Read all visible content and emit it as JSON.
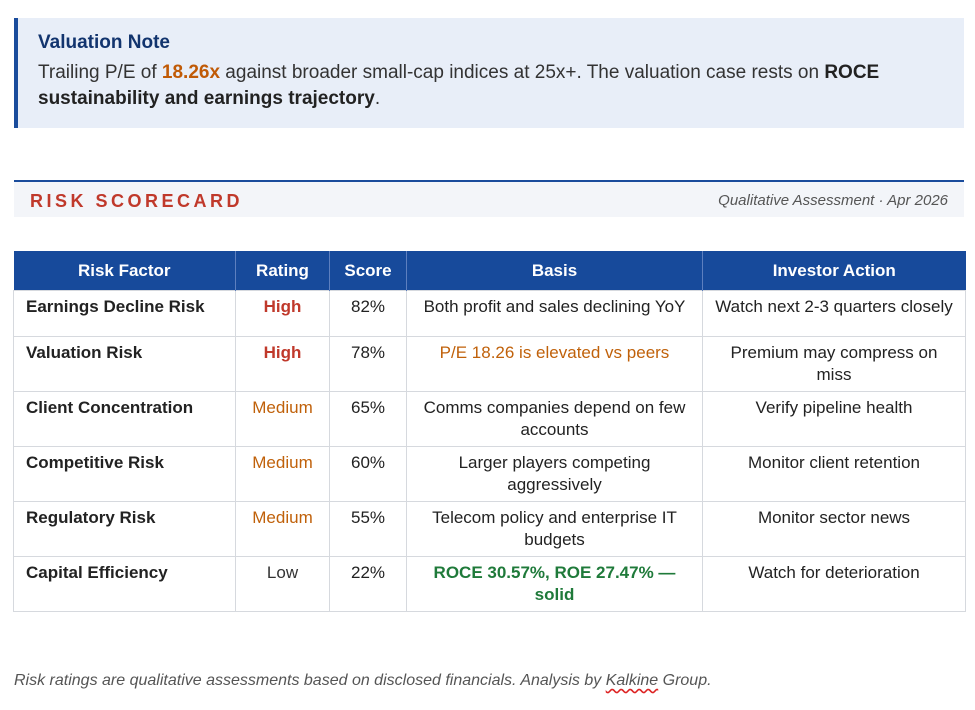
{
  "note": {
    "title": "Valuation Note",
    "text_part1": "Trailing P/E of ",
    "pe_value": "18.26x",
    "text_part2": " against broader small-cap indices at 25x+. The valuation case rests on ",
    "emphasis": "ROCE sustainability and earnings trajectory",
    "text_end": "."
  },
  "scorecard": {
    "title": "RISK SCORECARD",
    "subtitle": "Qualitative Assessment · Apr 2026"
  },
  "table": {
    "headers": [
      "Risk Factor",
      "Rating",
      "Score",
      "Basis",
      "Investor Action"
    ],
    "rows": [
      {
        "factor": "Earnings Decline Risk",
        "rating": "High",
        "score": "82%",
        "basis": "Both profit and sales declining YoY",
        "action": "Watch next 2-3 quarters closely"
      },
      {
        "factor": "Valuation Risk",
        "rating": "High",
        "score": "78%",
        "basis": "P/E 18.26 is elevated vs peers",
        "action": "Premium may compress on miss"
      },
      {
        "factor": "Client Concentration",
        "rating": "Medium",
        "score": "65%",
        "basis": "Comms companies depend on few accounts",
        "action": "Verify pipeline health"
      },
      {
        "factor": "Competitive Risk",
        "rating": "Medium",
        "score": "60%",
        "basis": "Larger players competing aggressively",
        "action": "Monitor client retention"
      },
      {
        "factor": "Regulatory Risk",
        "rating": "Medium",
        "score": "55%",
        "basis": "Telecom policy and enterprise IT budgets",
        "action": "Monitor sector news"
      },
      {
        "factor": "Capital Efficiency",
        "rating": "Low",
        "score": "22%",
        "basis": "ROCE 30.57%, ROE 27.47% — solid",
        "action": "Watch for deterioration"
      }
    ]
  },
  "footer": {
    "text_before": "Risk ratings are qualitative assessments based on disclosed financials. Analysis by ",
    "brand": "Kalkine",
    "text_after": " Group."
  },
  "colors": {
    "accent_blue": "#174a9b",
    "high": "#c0392b",
    "medium": "#c0610a",
    "positive": "#1f7a3a"
  }
}
